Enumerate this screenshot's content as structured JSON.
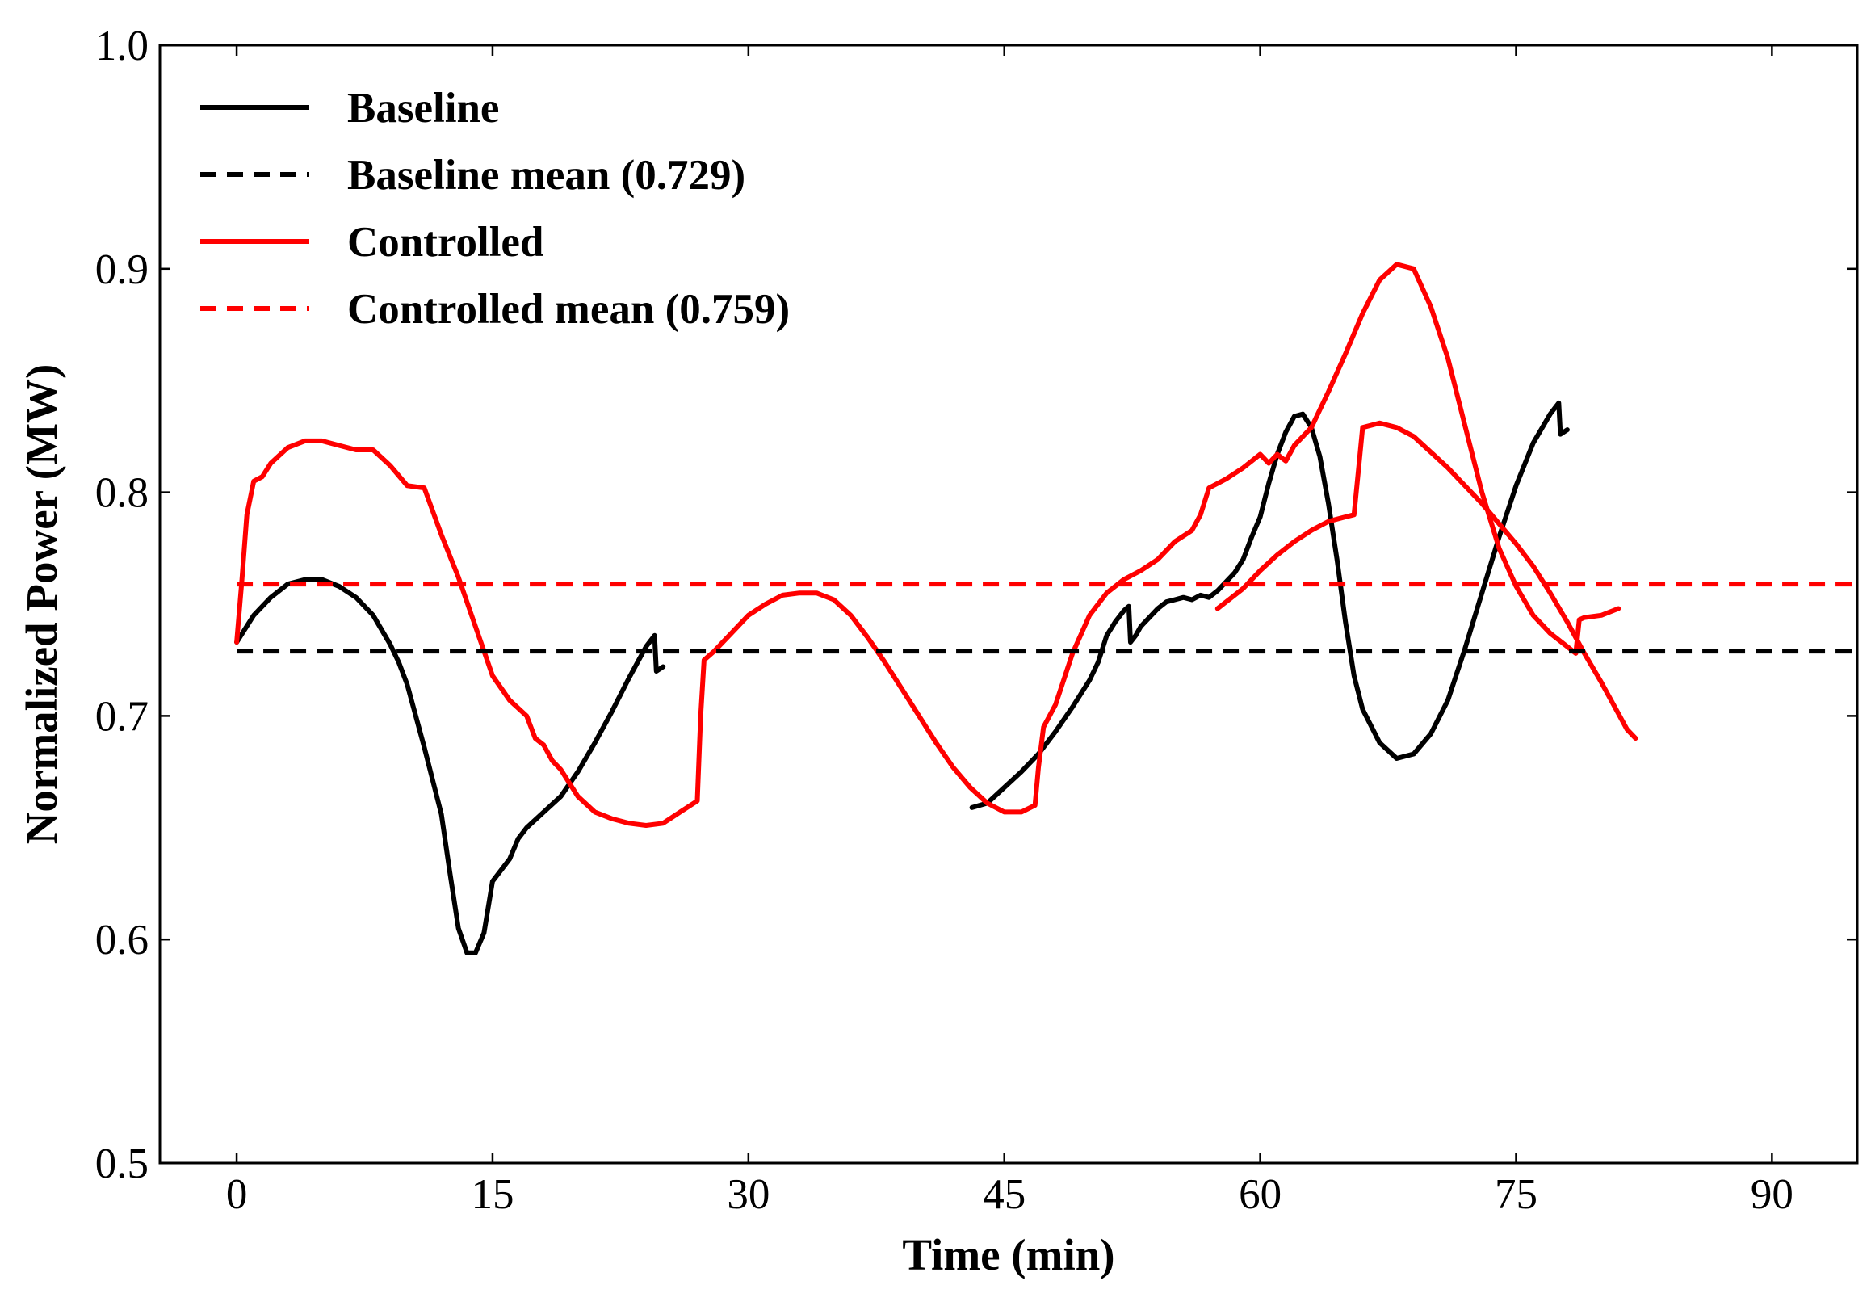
{
  "chart_data": {
    "type": "line",
    "title": "",
    "xlabel": "Time (min)",
    "ylabel": "Normalized Power (MW)",
    "xlim": [
      -4.5,
      95
    ],
    "ylim": [
      0.5,
      1.0
    ],
    "xticks": [
      0,
      15,
      30,
      45,
      60,
      75,
      90
    ],
    "xtick_labels": [
      "0",
      "15",
      "30",
      "45",
      "60",
      "75",
      "90"
    ],
    "yticks": [
      0.5,
      0.6,
      0.7,
      0.8,
      0.9,
      1.0
    ],
    "ytick_labels": [
      "0.5",
      "0.6",
      "0.7",
      "0.8",
      "0.9",
      "1.0"
    ],
    "grid": false,
    "legend_position": "top-left",
    "colors": {
      "baseline": "#000000",
      "controlled": "#ff0000"
    },
    "series": [
      {
        "name": "Baseline",
        "style": "solid",
        "color": "#000000",
        "points": [
          [
            0,
            0.733
          ],
          [
            1,
            0.745
          ],
          [
            2,
            0.753
          ],
          [
            3,
            0.759
          ],
          [
            4,
            0.761
          ],
          [
            5,
            0.761
          ],
          [
            6,
            0.758
          ],
          [
            7,
            0.753
          ],
          [
            8,
            0.745
          ],
          [
            9,
            0.732
          ],
          [
            9.5,
            0.724
          ],
          [
            10,
            0.714
          ],
          [
            11,
            0.686
          ],
          [
            12,
            0.656
          ],
          [
            12.5,
            0.63
          ],
          [
            13,
            0.605
          ],
          [
            13.5,
            0.594
          ],
          [
            14,
            0.594
          ],
          [
            14.5,
            0.603
          ],
          [
            15,
            0.626
          ],
          [
            16,
            0.636
          ],
          [
            16.5,
            0.645
          ],
          [
            17,
            0.65
          ],
          [
            18,
            0.657
          ],
          [
            19,
            0.664
          ],
          [
            20,
            0.675
          ],
          [
            21,
            0.688
          ],
          [
            22,
            0.702
          ],
          [
            23,
            0.717
          ],
          [
            24,
            0.731
          ],
          [
            24.5,
            0.736
          ],
          [
            24.6,
            0.72
          ],
          [
            25,
            0.722
          ]
        ]
      },
      {
        "name": "Baseline",
        "style": "solid",
        "color": "#000000",
        "points": [
          [
            43.1,
            0.659
          ],
          [
            44,
            0.661
          ],
          [
            45,
            0.668
          ],
          [
            46,
            0.675
          ],
          [
            47,
            0.683
          ],
          [
            48,
            0.693
          ],
          [
            49,
            0.704
          ],
          [
            50,
            0.716
          ],
          [
            50.5,
            0.724
          ],
          [
            51,
            0.736
          ],
          [
            51.5,
            0.742
          ],
          [
            52,
            0.747
          ],
          [
            52.3,
            0.749
          ],
          [
            52.4,
            0.733
          ],
          [
            52.7,
            0.736
          ],
          [
            53,
            0.74
          ],
          [
            54,
            0.748
          ],
          [
            54.5,
            0.751
          ],
          [
            55,
            0.752
          ],
          [
            55.5,
            0.753
          ],
          [
            56,
            0.752
          ],
          [
            56.5,
            0.754
          ],
          [
            57,
            0.753
          ],
          [
            57.5,
            0.756
          ],
          [
            58,
            0.76
          ],
          [
            58.5,
            0.764
          ],
          [
            59,
            0.77
          ],
          [
            59.5,
            0.78
          ],
          [
            60,
            0.789
          ],
          [
            60.5,
            0.804
          ],
          [
            61,
            0.817
          ],
          [
            61.5,
            0.827
          ],
          [
            62,
            0.834
          ],
          [
            62.5,
            0.835
          ],
          [
            63,
            0.829
          ],
          [
            63.5,
            0.816
          ],
          [
            64,
            0.795
          ],
          [
            64.5,
            0.77
          ],
          [
            65,
            0.742
          ],
          [
            65.5,
            0.718
          ],
          [
            66,
            0.703
          ],
          [
            67,
            0.688
          ],
          [
            68,
            0.681
          ],
          [
            69,
            0.683
          ],
          [
            70,
            0.692
          ],
          [
            71,
            0.707
          ],
          [
            72,
            0.73
          ],
          [
            73,
            0.755
          ],
          [
            74,
            0.78
          ],
          [
            75,
            0.803
          ],
          [
            76,
            0.822
          ],
          [
            77,
            0.835
          ],
          [
            77.5,
            0.84
          ],
          [
            77.6,
            0.826
          ],
          [
            78,
            0.828
          ]
        ]
      },
      {
        "name": "Controlled",
        "style": "solid",
        "color": "#ff0000",
        "points": [
          [
            0,
            0.733
          ],
          [
            0.3,
            0.76
          ],
          [
            0.6,
            0.79
          ],
          [
            1,
            0.805
          ],
          [
            1.5,
            0.807
          ],
          [
            2,
            0.813
          ],
          [
            3,
            0.82
          ],
          [
            4,
            0.823
          ],
          [
            5,
            0.823
          ],
          [
            6,
            0.821
          ],
          [
            7,
            0.819
          ],
          [
            8,
            0.819
          ],
          [
            9,
            0.812
          ],
          [
            10,
            0.803
          ],
          [
            11,
            0.802
          ],
          [
            12,
            0.781
          ],
          [
            13,
            0.762
          ],
          [
            14,
            0.74
          ],
          [
            15,
            0.718
          ],
          [
            16,
            0.707
          ],
          [
            17,
            0.7
          ],
          [
            17.5,
            0.69
          ],
          [
            18,
            0.687
          ],
          [
            18.5,
            0.68
          ],
          [
            19,
            0.676
          ],
          [
            19.5,
            0.67
          ],
          [
            20,
            0.664
          ],
          [
            21,
            0.657
          ],
          [
            22,
            0.654
          ],
          [
            23,
            0.652
          ],
          [
            24,
            0.651
          ],
          [
            25,
            0.652
          ],
          [
            26,
            0.657
          ],
          [
            27,
            0.662
          ],
          [
            27.2,
            0.7
          ],
          [
            27.4,
            0.725
          ],
          [
            28,
            0.729
          ],
          [
            29,
            0.737
          ],
          [
            30,
            0.745
          ],
          [
            31,
            0.75
          ],
          [
            32,
            0.754
          ],
          [
            33,
            0.755
          ],
          [
            34,
            0.755
          ],
          [
            35,
            0.752
          ],
          [
            36,
            0.745
          ],
          [
            37,
            0.735
          ],
          [
            38,
            0.724
          ],
          [
            39,
            0.712
          ],
          [
            40,
            0.7
          ],
          [
            41,
            0.688
          ],
          [
            42,
            0.677
          ],
          [
            43,
            0.668
          ],
          [
            44,
            0.661
          ],
          [
            45,
            0.657
          ],
          [
            46,
            0.657
          ],
          [
            46.8,
            0.66
          ],
          [
            47,
            0.677
          ],
          [
            47.3,
            0.695
          ],
          [
            48,
            0.705
          ],
          [
            49,
            0.728
          ],
          [
            50,
            0.745
          ],
          [
            51,
            0.755
          ],
          [
            52,
            0.761
          ],
          [
            53,
            0.765
          ],
          [
            54,
            0.77
          ],
          [
            55,
            0.778
          ],
          [
            56,
            0.783
          ],
          [
            56.5,
            0.79
          ],
          [
            57,
            0.802
          ],
          [
            58,
            0.806
          ],
          [
            59,
            0.811
          ],
          [
            60,
            0.817
          ],
          [
            60.5,
            0.813
          ],
          [
            61,
            0.817
          ],
          [
            61.5,
            0.814
          ],
          [
            62,
            0.821
          ],
          [
            63,
            0.829
          ],
          [
            64,
            0.845
          ],
          [
            65,
            0.862
          ],
          [
            66,
            0.88
          ],
          [
            67,
            0.895
          ],
          [
            68,
            0.902
          ],
          [
            69,
            0.9
          ],
          [
            70,
            0.883
          ],
          [
            71,
            0.86
          ],
          [
            72,
            0.83
          ],
          [
            73,
            0.8
          ],
          [
            74,
            0.775
          ],
          [
            75,
            0.758
          ],
          [
            76,
            0.745
          ],
          [
            77,
            0.737
          ],
          [
            78,
            0.731
          ],
          [
            78.5,
            0.728
          ],
          [
            78.7,
            0.743
          ],
          [
            79,
            0.744
          ],
          [
            80,
            0.745
          ],
          [
            81,
            0.748
          ]
        ]
      },
      {
        "name": "Controlled",
        "style": "solid",
        "color": "#ff0000",
        "points": [
          [
            57.5,
            0.748
          ],
          [
            58,
            0.751
          ],
          [
            59,
            0.757
          ],
          [
            60,
            0.765
          ],
          [
            61,
            0.772
          ],
          [
            62,
            0.778
          ],
          [
            63,
            0.783
          ],
          [
            64,
            0.787
          ],
          [
            65,
            0.789
          ],
          [
            65.5,
            0.79
          ],
          [
            65.8,
            0.813
          ],
          [
            66,
            0.829
          ],
          [
            67,
            0.831
          ],
          [
            68,
            0.829
          ],
          [
            69,
            0.825
          ],
          [
            70,
            0.818
          ],
          [
            71,
            0.811
          ],
          [
            72,
            0.803
          ],
          [
            73,
            0.795
          ],
          [
            74,
            0.786
          ],
          [
            75,
            0.777
          ],
          [
            76,
            0.767
          ],
          [
            77,
            0.755
          ],
          [
            78,
            0.742
          ],
          [
            79,
            0.728
          ],
          [
            80,
            0.715
          ],
          [
            81,
            0.701
          ],
          [
            81.5,
            0.694
          ],
          [
            82,
            0.69
          ]
        ]
      },
      {
        "name": "Baseline mean (0.729)",
        "style": "dashed",
        "color": "#000000",
        "value": 0.729
      },
      {
        "name": "Controlled mean (0.759)",
        "style": "dashed",
        "color": "#ff0000",
        "value": 0.759
      }
    ],
    "legend": [
      {
        "label": "Baseline",
        "color": "#000000",
        "style": "solid"
      },
      {
        "label": "Baseline mean (0.729)",
        "color": "#000000",
        "style": "dashed"
      },
      {
        "label": "Controlled",
        "color": "#ff0000",
        "style": "solid"
      },
      {
        "label": "Controlled mean (0.759)",
        "color": "#ff0000",
        "style": "dashed"
      }
    ]
  }
}
